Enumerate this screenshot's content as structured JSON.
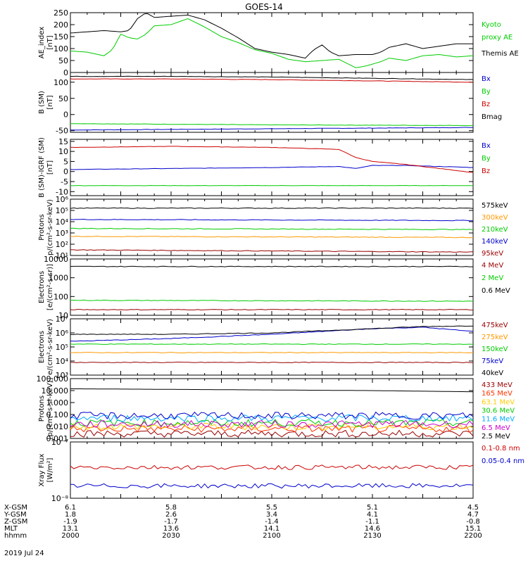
{
  "chart_data": {
    "type": "line",
    "title": "GOES-14",
    "date": "2019 Jul 24",
    "time_axis": {
      "start": 2000,
      "end": 2200,
      "tick_labels": [
        "2000",
        "2030",
        "2100",
        "2130",
        "2200"
      ]
    },
    "orbit_table": {
      "labels": [
        "X-GSM",
        "Y-GSM",
        "Z-GSM",
        "MLT",
        "hhmm"
      ],
      "rows": [
        [
          "6.1",
          "5.8",
          "5.5",
          "5.1",
          "4.5"
        ],
        [
          "1.8",
          "2.6",
          "3.4",
          "4.1",
          "4.7"
        ],
        [
          "-1.9",
          "-1.7",
          "-1.4",
          "-1.1",
          "-0.8"
        ],
        [
          "13.1",
          "13.6",
          "14.1",
          "14.6",
          "15.1"
        ],
        [
          "2000",
          "2030",
          "2100",
          "2130",
          "2200"
        ]
      ]
    },
    "panels": [
      {
        "ylabel": [
          "AE_index",
          "[nT]"
        ],
        "yscale": "linear",
        "ylim": [
          0,
          250
        ],
        "ticks": [
          0,
          50,
          100,
          150,
          200,
          250
        ],
        "tick_labels": [
          "0",
          "50",
          "100",
          "150",
          "200",
          "250"
        ],
        "series": [
          {
            "name": "Kyoto\nproxy AE",
            "legend_lines": [
              "Kyoto",
              "proxy AE"
            ],
            "color": "#00cc00",
            "x": [
              0,
              10,
              20,
              25,
              30,
              35,
              40,
              45,
              50,
              60,
              70,
              80,
              90,
              100,
              110,
              120,
              130,
              140,
              150,
              160,
              170,
              175,
              180,
              185,
              190,
              200,
              210,
              220,
              230,
              240
            ],
            "y": [
              90,
              85,
              70,
              95,
              160,
              145,
              140,
              160,
              195,
              200,
              225,
              190,
              150,
              125,
              95,
              80,
              55,
              45,
              50,
              55,
              20,
              25,
              35,
              45,
              60,
              50,
              70,
              75,
              65,
              70
            ]
          },
          {
            "name": "Themis AE",
            "legend_lines": [
              "Themis AE"
            ],
            "color": "#000000",
            "x": [
              0,
              10,
              20,
              30,
              35,
              40,
              45,
              50,
              60,
              70,
              80,
              90,
              100,
              110,
              120,
              130,
              140,
              145,
              150,
              155,
              160,
              170,
              180,
              185,
              190,
              200,
              210,
              220,
              230,
              240
            ],
            "y": [
              165,
              170,
              175,
              170,
              175,
              225,
              250,
              230,
              235,
              240,
              220,
              185,
              145,
              100,
              85,
              75,
              60,
              95,
              115,
              85,
              70,
              75,
              75,
              85,
              105,
              120,
              100,
              110,
              120,
              120
            ]
          }
        ]
      },
      {
        "ylabel": [
          "B (SM)",
          "[nT]"
        ],
        "yscale": "linear",
        "ylim": [
          -55,
          130
        ],
        "ticks": [
          -50,
          0,
          50,
          100
        ],
        "tick_labels": [
          "-50",
          "0",
          "50",
          "100"
        ],
        "series": [
          {
            "name": "Bx",
            "legend_lines": [
              "Bx"
            ],
            "color": "#0000cc",
            "x": [
              0,
              60,
              120,
              180,
              240
            ],
            "y": [
              -48,
              -46,
              -44,
              -42,
              -40
            ]
          },
          {
            "name": "By",
            "legend_lines": [
              "By"
            ],
            "color": "#00cc00",
            "x": [
              0,
              60,
              120,
              180,
              240
            ],
            "y": [
              -28,
              -30,
              -32,
              -33,
              -34
            ]
          },
          {
            "name": "Bz",
            "legend_lines": [
              "Bz"
            ],
            "color": "#cc0000",
            "x": [
              0,
              60,
              120,
              180,
              240
            ],
            "y": [
              110,
              110,
              108,
              104,
              100
            ]
          },
          {
            "name": "Bmag",
            "legend_lines": [
              "Bmag"
            ],
            "color": "#000000",
            "x": [
              0,
              60,
              120,
              180,
              240
            ],
            "y": [
              118,
              118,
              116,
              112,
              108
            ]
          }
        ]
      },
      {
        "ylabel": [
          "B (SM)-IGRF (SM)",
          "[nT]"
        ],
        "yscale": "linear",
        "ylim": [
          -12,
          16
        ],
        "ticks": [
          -10,
          -5,
          0,
          5,
          10,
          15
        ],
        "tick_labels": [
          "-10",
          "-5",
          "0",
          "5",
          "10",
          "15"
        ],
        "series": [
          {
            "name": "Bx",
            "legend_lines": [
              "Bx"
            ],
            "color": "#0000cc",
            "x": [
              0,
              60,
              120,
              160,
              170,
              180,
              200,
              240
            ],
            "y": [
              1,
              1.5,
              2,
              2.5,
              1.5,
              3,
              3,
              2
            ]
          },
          {
            "name": "By",
            "legend_lines": [
              "By"
            ],
            "color": "#00cc00",
            "x": [
              0,
              60,
              120,
              180,
              240
            ],
            "y": [
              -7,
              -7,
              -7,
              -7,
              -7
            ]
          },
          {
            "name": "Bz",
            "legend_lines": [
              "Bz"
            ],
            "color": "#cc0000",
            "x": [
              0,
              60,
              120,
              160,
              170,
              180,
              200,
              220,
              240
            ],
            "y": [
              12,
              12.5,
              12,
              11,
              7,
              5,
              3.5,
              1.5,
              -0.5
            ]
          }
        ]
      },
      {
        "ylabel": [
          "Protons",
          "p/(cm²-s-sr-keV)"
        ],
        "yscale": "log",
        "ylim": [
          1,
          6
        ],
        "ticks": [
          1,
          2,
          3,
          4,
          5,
          6
        ],
        "tick_labels": [
          "10¹",
          "10²",
          "10³",
          "10⁴",
          "10⁵",
          "10⁶"
        ],
        "series": [
          {
            "name": "575keV",
            "legend_lines": [
              "575keV"
            ],
            "color": "#000000",
            "x": [
              0,
              240
            ],
            "y": [
              5.2,
              5.2
            ]
          },
          {
            "name": "300keV",
            "legend_lines": [
              "300keV"
            ],
            "color": "#ff9900",
            "x": [
              0,
              240
            ],
            "y": [
              2.7,
              2.6
            ]
          },
          {
            "name": "210keV",
            "legend_lines": [
              "210keV"
            ],
            "color": "#00cc00",
            "x": [
              0,
              240
            ],
            "y": [
              3.4,
              3.3
            ]
          },
          {
            "name": "140keV",
            "legend_lines": [
              "140keV"
            ],
            "color": "#0000cc",
            "x": [
              0,
              240
            ],
            "y": [
              4.2,
              4.1
            ]
          },
          {
            "name": "95keV",
            "legend_lines": [
              "95keV"
            ],
            "color": "#990000",
            "x": [
              0,
              240
            ],
            "y": [
              1.5,
              1.3
            ]
          }
        ]
      },
      {
        "ylabel": [
          "Electrons",
          "[e/(cm²-s-sr)]"
        ],
        "yscale": "log",
        "ylim": [
          1,
          4
        ],
        "ticks": [
          1,
          2,
          3,
          4
        ],
        "tick_labels": [
          "10",
          "100",
          "1000",
          "10000"
        ],
        "series": [
          {
            "name": "4 MeV",
            "legend_lines": [
              "4 MeV"
            ],
            "color": "#990000",
            "x": [
              0,
              240
            ],
            "y": [
              1.3,
              1.3
            ]
          },
          {
            "name": "2 MeV",
            "legend_lines": [
              "2 MeV"
            ],
            "color": "#00cc00",
            "x": [
              0,
              240
            ],
            "y": [
              1.8,
              1.75
            ]
          },
          {
            "name": "0.6 MeV",
            "legend_lines": [
              "0.6 MeV"
            ],
            "color": "#000000",
            "x": [
              0,
              240
            ],
            "y": [
              3.6,
              3.6
            ]
          }
        ]
      },
      {
        "ylabel": [
          "Electrons",
          "e/(cm²-s-sr-keV)"
        ],
        "yscale": "log",
        "ylim": [
          3,
          7
        ],
        "ticks": [
          3,
          4,
          5,
          6,
          7
        ],
        "tick_labels": [
          "10³",
          "10⁴",
          "10⁵",
          "10⁶",
          "10⁷"
        ],
        "series": [
          {
            "name": "475keV",
            "legend_lines": [
              "475keV"
            ],
            "color": "#990000",
            "x": [
              0,
              240
            ],
            "y": [
              3.9,
              3.9
            ]
          },
          {
            "name": "275keV",
            "legend_lines": [
              "275keV"
            ],
            "color": "#ff9900",
            "x": [
              0,
              240
            ],
            "y": [
              4.6,
              4.6
            ]
          },
          {
            "name": "150keV",
            "legend_lines": [
              "150keV"
            ],
            "color": "#00cc00",
            "x": [
              0,
              240
            ],
            "y": [
              5.2,
              5.2
            ]
          },
          {
            "name": "75keV",
            "legend_lines": [
              "75keV"
            ],
            "color": "#0000cc",
            "x": [
              0,
              60,
              120,
              180,
              210,
              240
            ],
            "y": [
              5.4,
              5.6,
              5.9,
              6.3,
              6.4,
              6.1
            ]
          },
          {
            "name": "40keV",
            "legend_lines": [
              "40keV"
            ],
            "color": "#000000",
            "x": [
              0,
              60,
              120,
              180,
              210,
              240
            ],
            "y": [
              5.9,
              5.9,
              6.0,
              6.3,
              6.45,
              6.5
            ]
          }
        ]
      },
      {
        "ylabel": [
          "Protons",
          "[p/(cm²-s-sr-keV)]"
        ],
        "yscale": "log",
        "ylim": [
          -3,
          2
        ],
        "ticks": [
          -3,
          -2,
          -1,
          0,
          1,
          2
        ],
        "tick_labels": [
          "0.001",
          "0.010",
          "0.100",
          "1.000",
          "10.000",
          "100.000"
        ],
        "series": [
          {
            "name": "433 MeV",
            "legend_lines": [
              "433 MeV"
            ],
            "color": "#990000",
            "x": [
              0,
              240
            ],
            "y": [
              -2.6,
              -2.6
            ]
          },
          {
            "name": "165 MeV",
            "legend_lines": [
              "165 MeV"
            ],
            "color": "#ff3300",
            "x": [
              0,
              240
            ],
            "y": [
              -2.2,
              -2.2
            ]
          },
          {
            "name": "63.1 MeV",
            "legend_lines": [
              "63.1 MeV"
            ],
            "color": "#ffcc00",
            "x": [
              0,
              240
            ],
            "y": [
              -2.0,
              -2.0
            ]
          },
          {
            "name": "30.6 MeV",
            "legend_lines": [
              "30.6 MeV"
            ],
            "color": "#00cc00",
            "x": [
              0,
              240
            ],
            "y": [
              -1.7,
              -1.7
            ]
          },
          {
            "name": "11.6 MeV",
            "legend_lines": [
              "11.6 MeV"
            ],
            "color": "#00aaff",
            "x": [
              0,
              240
            ],
            "y": [
              -1.3,
              -1.3
            ]
          },
          {
            "name": "6.5 MeV",
            "legend_lines": [
              "6.5 MeV"
            ],
            "color": "#cc00cc",
            "x": [
              0,
              240
            ],
            "y": [
              -1.8,
              -1.8
            ]
          },
          {
            "name": "2.5 MeV",
            "legend_lines": [
              "2.5 MeV"
            ],
            "color": "#000000",
            "x": [
              0,
              60,
              120,
              180,
              240
            ],
            "y": [
              1.15,
              1.1,
              1.05,
              1.0,
              0.9
            ]
          },
          {
            "name": "2.5 MeV noise",
            "legend_lines": [],
            "color": "#0000cc",
            "x": [
              0,
              240
            ],
            "y": [
              -1.1,
              -1.1
            ]
          }
        ]
      },
      {
        "ylabel": [
          "Xray Flux",
          "[W/m²]"
        ],
        "yscale": "log",
        "ylim": [
          -8,
          -7
        ],
        "ticks": [
          -8,
          -7
        ],
        "tick_labels": [
          "10⁻⁸",
          "10⁻⁷"
        ],
        "series": [
          {
            "name": "0.1-0.8 nm",
            "legend_lines": [
              "0.1-0.8 nm"
            ],
            "color": "#cc0000",
            "x": [
              0,
              240
            ],
            "y": [
              -7.45,
              -7.45
            ]
          },
          {
            "name": "0.05-0.4 nm",
            "legend_lines": [
              "0.05-0.4 nm"
            ],
            "color": "#0000cc",
            "x": [
              0,
              240
            ],
            "y": [
              -7.78,
              -7.78
            ]
          }
        ]
      }
    ]
  }
}
